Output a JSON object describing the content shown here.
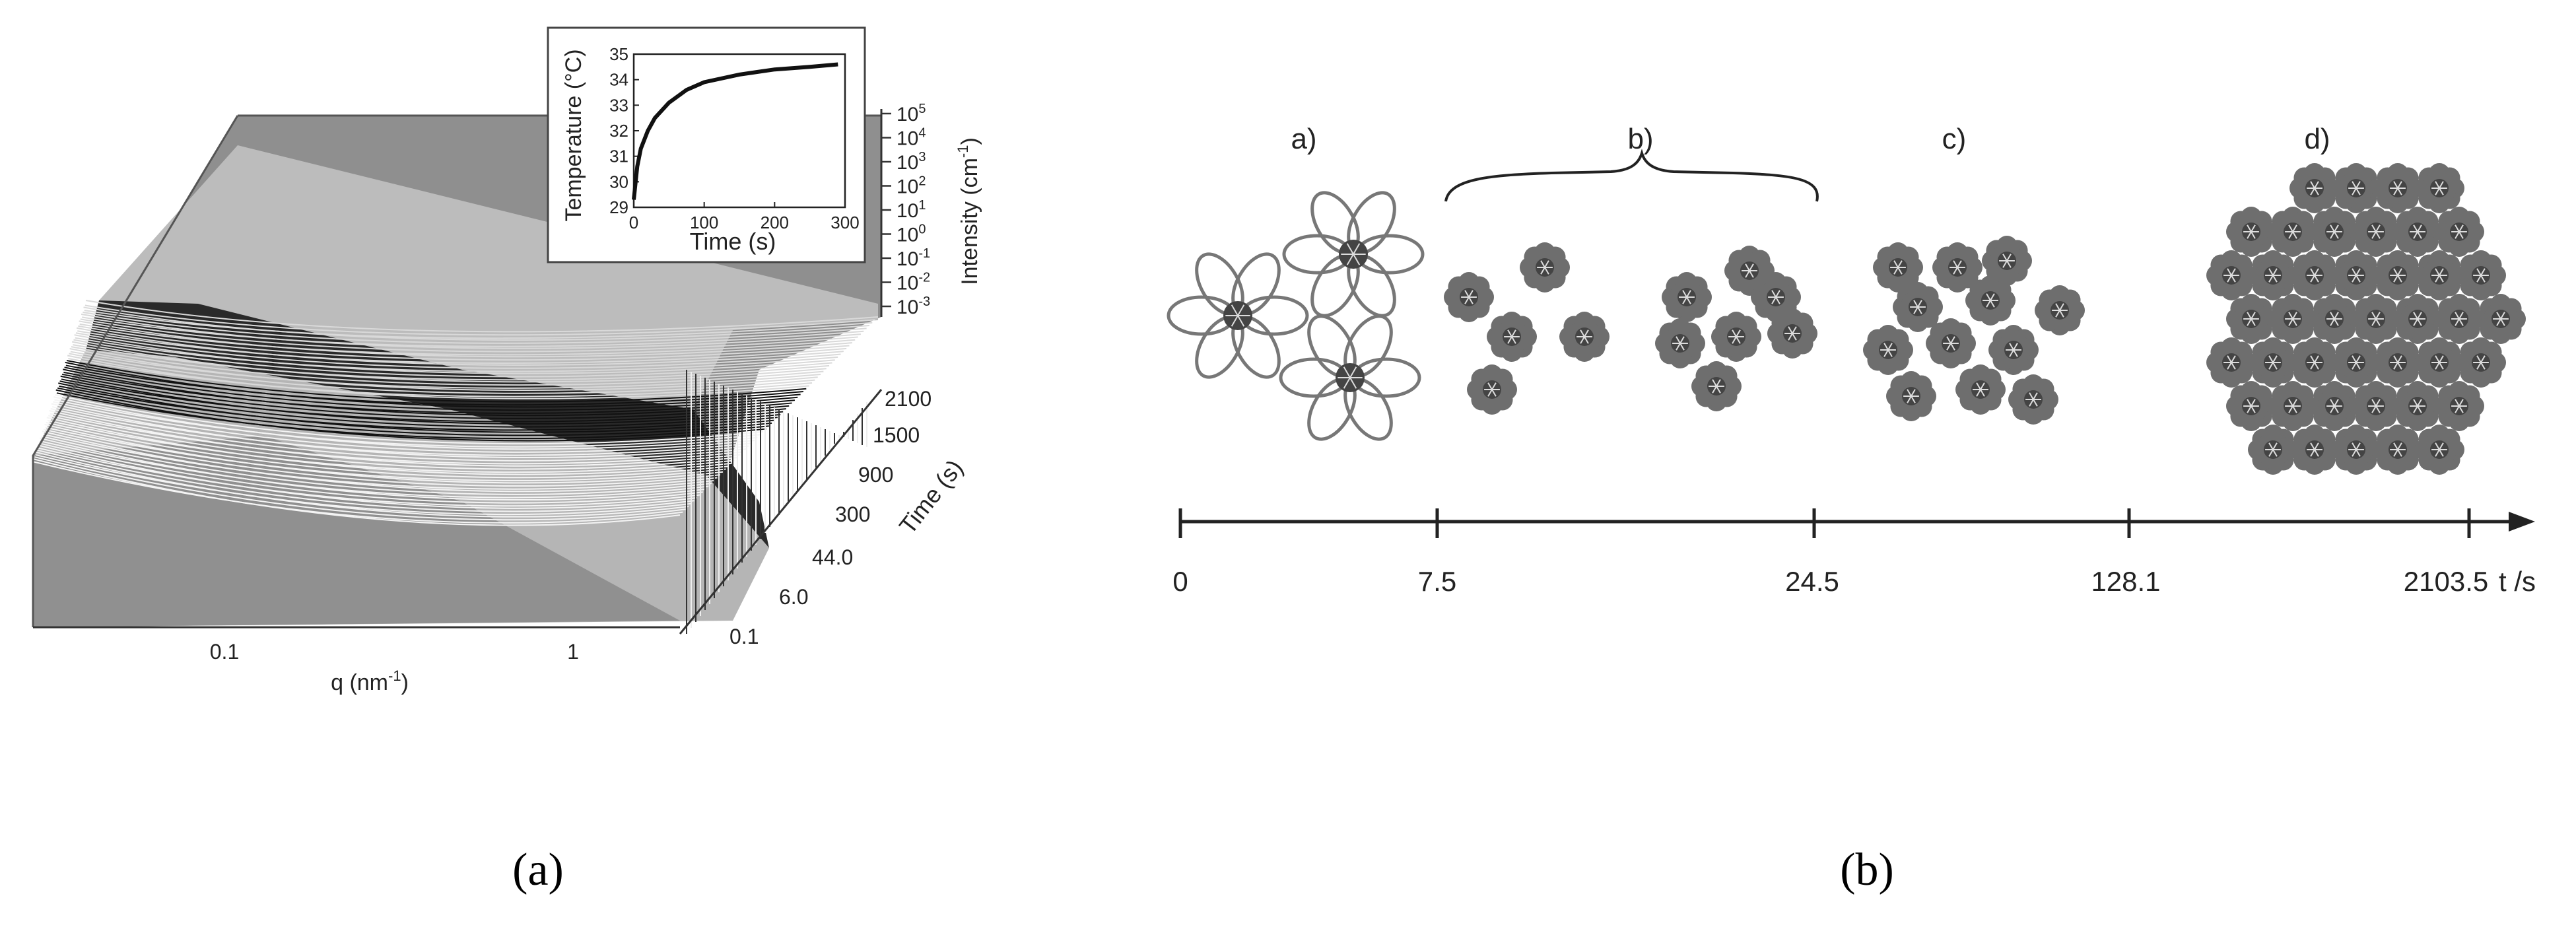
{
  "figure": {
    "panel_a": {
      "caption": "(a)",
      "x_axis": {
        "label": "q (nm",
        "label_sup": "-1",
        "label_close": ")",
        "ticks": [
          "0.1",
          "1"
        ]
      },
      "y_axis": {
        "label": "Intensity (cm",
        "label_sup": "-1",
        "label_close": ")",
        "ticks": [
          {
            "base": "10",
            "exp": "5"
          },
          {
            "base": "10",
            "exp": "4"
          },
          {
            "base": "10",
            "exp": "3"
          },
          {
            "base": "10",
            "exp": "2"
          },
          {
            "base": "10",
            "exp": "1"
          },
          {
            "base": "10",
            "exp": "0"
          },
          {
            "base": "10",
            "exp": "-1"
          },
          {
            "base": "10",
            "exp": "-2"
          },
          {
            "base": "10",
            "exp": "-3"
          }
        ]
      },
      "z_axis": {
        "label": "Time (s)",
        "ticks": [
          "2100",
          "1500",
          "900",
          "300",
          "44.0",
          "6.0",
          "0.1"
        ]
      },
      "inset": {
        "xlabel": "Time (s)",
        "ylabel": "Temperature (°C)",
        "x_ticks": [
          "0",
          "100",
          "200",
          "300"
        ],
        "y_ticks": [
          "29",
          "30",
          "31",
          "32",
          "33",
          "34",
          "35"
        ]
      }
    },
    "panel_b": {
      "caption": "(b)",
      "stage_labels": [
        "a)",
        "b)",
        "c)",
        "d)"
      ],
      "timeline": {
        "ticks": [
          "0",
          "7.5",
          "24.5",
          "128.1",
          "2103.5"
        ],
        "unit_label": "t /s"
      }
    }
  },
  "chart_data": [
    {
      "type": "line",
      "title": "",
      "xlabel": "q (nm-1)",
      "ylabel": "Intensity (cm-1)",
      "zlabel": "Time (s)",
      "x_scale": "log",
      "y_scale": "log",
      "xlim": [
        0.03,
        2.5
      ],
      "ylim": [
        0.001,
        100000
      ],
      "time_ticks_s": [
        0.1,
        6.0,
        44.0,
        300,
        900,
        1500,
        2100
      ],
      "grid": false
    },
    {
      "type": "line",
      "title": "",
      "xlabel": "Time (s)",
      "ylabel": "Temperature (°C)",
      "xlim": [
        0,
        300
      ],
      "ylim": [
        29,
        35
      ],
      "series": [
        {
          "x": [
            0,
            5,
            10,
            20,
            30,
            50,
            75,
            100,
            150,
            200,
            250,
            290
          ],
          "values": [
            29.3,
            30.6,
            31.3,
            32.0,
            32.5,
            33.1,
            33.6,
            33.9,
            34.2,
            34.4,
            34.5,
            34.6
          ]
        }
      ]
    }
  ]
}
